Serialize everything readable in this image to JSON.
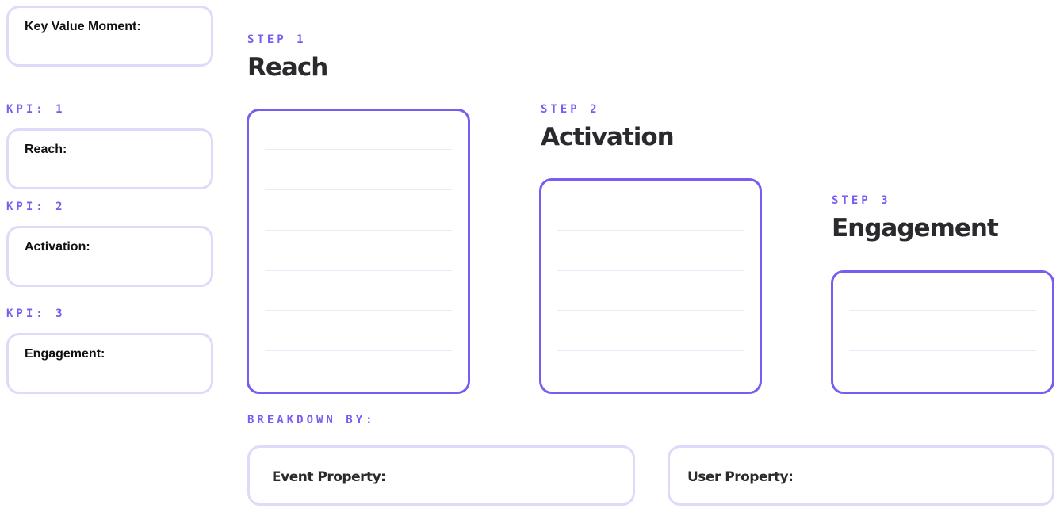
{
  "colors": {
    "accent": "#7b5cf0",
    "light_border": "#dedafa",
    "text": "#2a2a2e"
  },
  "kpi_column": {
    "key_value_moment": "Key Value Moment:",
    "kpis": [
      {
        "label": "KPI: 1",
        "field": "Reach:"
      },
      {
        "label": "KPI: 2",
        "field": "Activation:"
      },
      {
        "label": "KPI: 3",
        "field": "Engagement:"
      }
    ]
  },
  "steps": [
    {
      "label": "STEP 1",
      "title": "Reach"
    },
    {
      "label": "STEP 2",
      "title": "Activation"
    },
    {
      "label": "STEP 3",
      "title": "Engagement"
    }
  ],
  "breakdown": {
    "label": "BREAKDOWN BY:",
    "event_property": "Event Property:",
    "user_property": "User Property:"
  }
}
